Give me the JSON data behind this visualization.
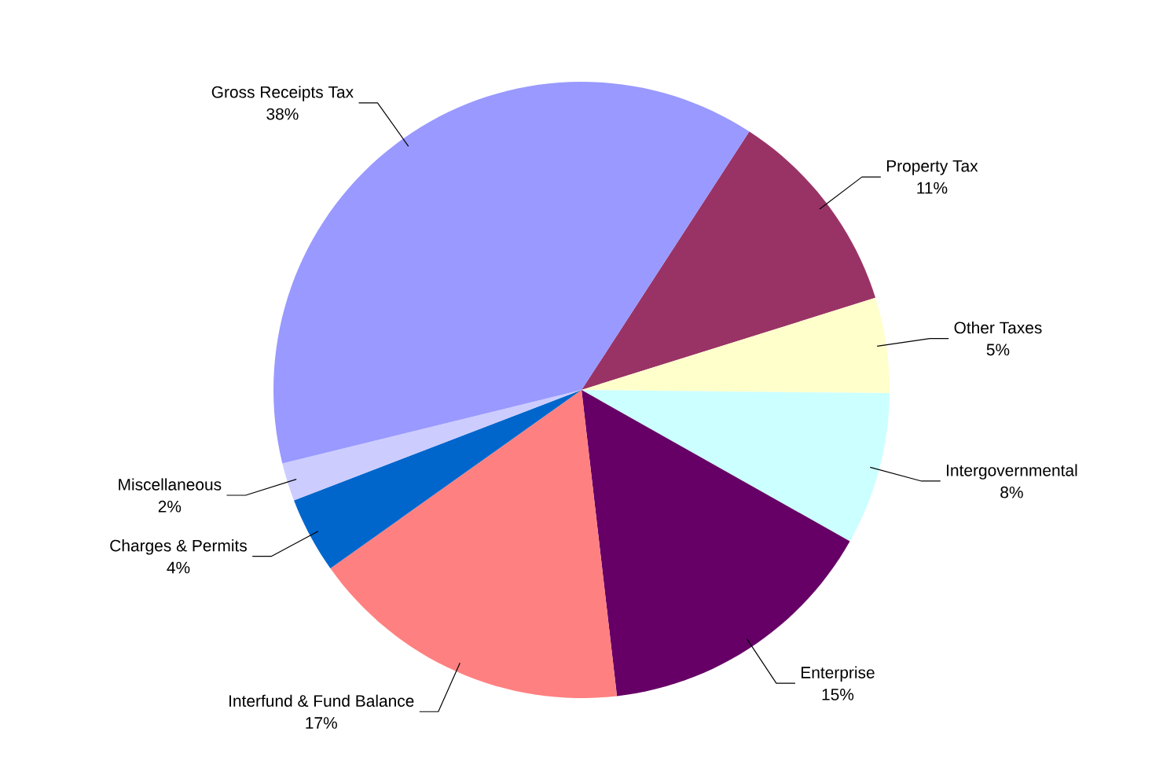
{
  "chart_data": {
    "type": "pie",
    "categories": [
      "Property Tax",
      "Other Taxes",
      "Intergovernmental",
      "Enterprise",
      "Interfund & Fund Balance",
      "Charges & Permits",
      "Miscellaneous",
      "Gross Receipts Tax"
    ],
    "values": [
      11,
      5,
      8,
      15,
      17,
      4,
      2,
      38
    ],
    "value_labels": [
      "11%",
      "5%",
      "8%",
      "15%",
      "17%",
      "4%",
      "2%",
      "38%"
    ],
    "colors": [
      "#993366",
      "#ffffcc",
      "#ccffff",
      "#660066",
      "#ff8080",
      "#0066cc",
      "#ccccff",
      "#9999ff"
    ]
  }
}
